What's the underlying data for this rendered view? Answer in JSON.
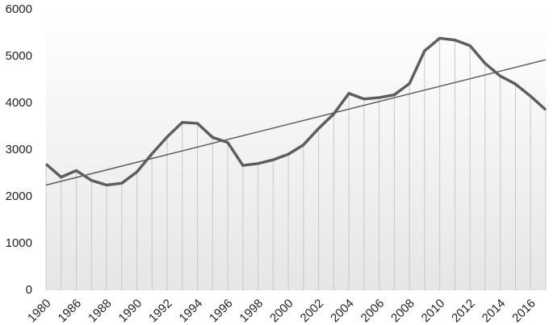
{
  "chart_data": {
    "type": "line",
    "categories": [
      "1980",
      null,
      "1986",
      null,
      "1988",
      null,
      "1990",
      null,
      "1992",
      null,
      "1994",
      null,
      "1996",
      null,
      "1998",
      null,
      "2000",
      null,
      "2002",
      null,
      "2004",
      null,
      "2006",
      null,
      "2008",
      null,
      "2010",
      null,
      "2012",
      null,
      "2014",
      null,
      "2016",
      null
    ],
    "series": [
      {
        "color": "#5e5e5e",
        "values": [
          2700,
          2420,
          2560,
          2350,
          2250,
          2290,
          2530,
          2920,
          3280,
          3590,
          3570,
          3270,
          3160,
          2670,
          2710,
          2790,
          2910,
          3110,
          3460,
          3770,
          4210,
          4090,
          4120,
          4180,
          4420,
          5120,
          5390,
          5350,
          5230,
          4850,
          4580,
          4410,
          4150,
          3860
        ]
      }
    ],
    "trendline": {
      "color": "#5e5e5e",
      "values": [
        2250,
        4930
      ]
    },
    "ylim": [
      0,
      6000
    ],
    "yticks": [
      0,
      1000,
      2000,
      3000,
      4000,
      5000,
      6000
    ],
    "drop_lines": true
  }
}
